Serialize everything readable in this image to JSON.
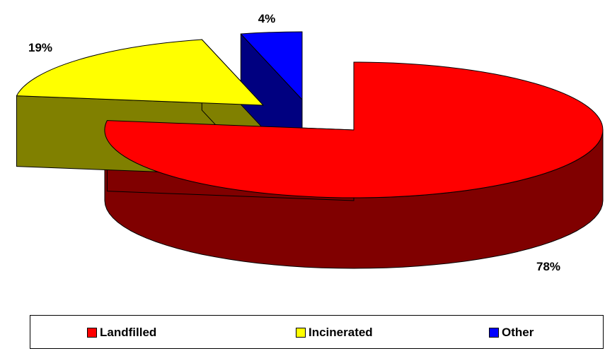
{
  "chart_data": {
    "type": "pie",
    "title": "",
    "categories": [
      "Landfilled",
      "Incinerated",
      "Other"
    ],
    "values": [
      78,
      19,
      4
    ],
    "data_labels": [
      "78%",
      "19%",
      "4%"
    ],
    "colors": [
      "#ff0000",
      "#ffff00",
      "#0000ff"
    ],
    "side_colors": [
      "#800000",
      "#808000",
      "#000080"
    ],
    "exploded": true,
    "three_d": true,
    "legend_position": "bottom"
  },
  "legend": {
    "items": [
      {
        "label": "Landfilled",
        "color": "#ff0000"
      },
      {
        "label": "Incinerated",
        "color": "#ffff00"
      },
      {
        "label": "Other",
        "color": "#0000ff"
      }
    ]
  }
}
